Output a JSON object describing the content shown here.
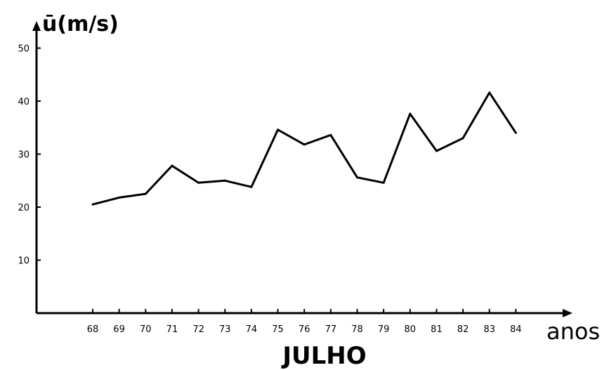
{
  "chart_data": {
    "type": "line",
    "title": "JULHO",
    "xlabel": "anos",
    "ylabel": "ū(m/s)",
    "x": [
      "68",
      "69",
      "70",
      "71",
      "72",
      "73",
      "74",
      "75",
      "76",
      "77",
      "78",
      "79",
      "80",
      "81",
      "82",
      "83",
      "84"
    ],
    "series": [
      {
        "values": [
          20.5,
          21.8,
          22.5,
          27.8,
          24.6,
          25.0,
          23.8,
          34.6,
          31.8,
          33.6,
          25.6,
          24.6,
          37.6,
          30.6,
          33.0,
          41.6,
          34.0
        ]
      }
    ],
    "yticks": [
      10,
      20,
      30,
      40,
      50
    ],
    "ylim": [
      0,
      55
    ],
    "grid": false,
    "line_color": "#000000"
  }
}
